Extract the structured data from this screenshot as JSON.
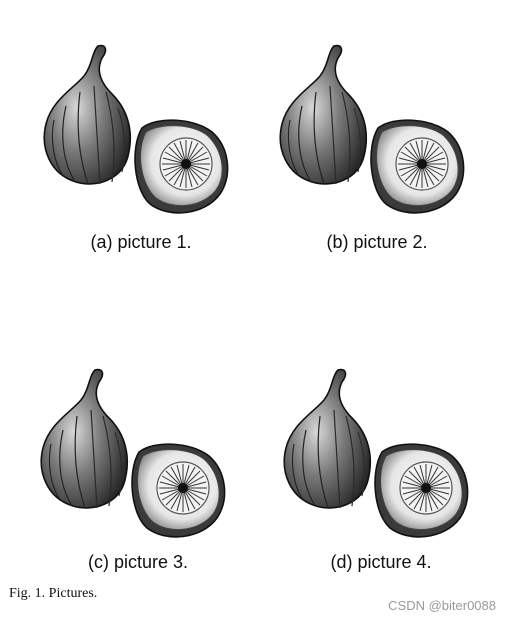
{
  "subfigures": [
    {
      "caption": "(a) picture 1.",
      "image": "fig-illustration"
    },
    {
      "caption": "(b) picture 2.",
      "image": "fig-illustration"
    },
    {
      "caption": "(c) picture 3.",
      "image": "fig-illustration"
    },
    {
      "caption": "(d) picture 4.",
      "image": "fig-illustration"
    }
  ],
  "figure_caption": "Fig. 1.   Pictures.",
  "watermark": "CSDN @biter0088"
}
